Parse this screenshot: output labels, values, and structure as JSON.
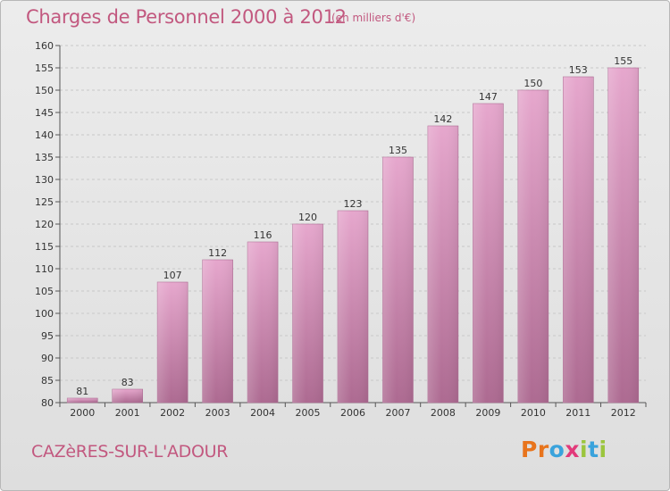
{
  "header": {
    "title": "Charges de Personnel 2000 à 2012",
    "subtitle": "(en milliers d'€)"
  },
  "footer": {
    "commune": "CAZèRES-SUR-L'ADOUR",
    "logo": [
      "P",
      "r",
      "o",
      "x",
      "i",
      "t",
      "i"
    ],
    "logo_colors": [
      "#e8741c",
      "#e8741c",
      "#3aa3dc",
      "#e23a7a",
      "#9bc53d",
      "#3aa3dc",
      "#9bc53d"
    ]
  },
  "colors": {
    "bar_light": "#e6a7cd",
    "bar_dark": "#ad6a91",
    "text": "#c2587f",
    "axis_text": "#333333",
    "grid": "#c8c8c8"
  },
  "chart_data": {
    "type": "bar",
    "categories": [
      "2000",
      "2001",
      "2002",
      "2003",
      "2004",
      "2005",
      "2006",
      "2007",
      "2008",
      "2009",
      "2010",
      "2011",
      "2012"
    ],
    "values": [
      81,
      83,
      107,
      112,
      116,
      120,
      123,
      135,
      142,
      147,
      150,
      153,
      155
    ],
    "data_labels": [
      "81",
      "83",
      "107",
      "112",
      "116",
      "120",
      "123",
      "135",
      "142",
      "147",
      "150",
      "153",
      "155"
    ],
    "yticks": [
      "80",
      "85",
      "90",
      "95",
      "100",
      "105",
      "110",
      "115",
      "120",
      "125",
      "130",
      "135",
      "140",
      "145",
      "150",
      "155",
      "160"
    ],
    "ylim": [
      80,
      160
    ],
    "grid": true,
    "title": "Charges de Personnel 2000 à 2012",
    "xlabel": "",
    "ylabel": ""
  }
}
